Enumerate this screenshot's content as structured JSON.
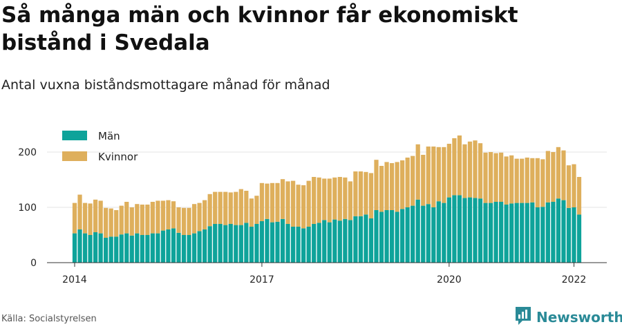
{
  "title": "Så många män och kvinnor får ekonomiskt bistånd i Svedala",
  "subtitle": "Antal vuxna biståndsmottagare månad för månad",
  "source": "Källa: Socialstyrelsen",
  "brand": {
    "name": "Newsworthy",
    "icon": "newsworthy-logo-icon",
    "color": "#2a8a97"
  },
  "chart_data": {
    "type": "bar",
    "stacked": true,
    "x_start": "2014-01",
    "x_end": "2022-01",
    "xticks": [
      "2014",
      "2017",
      "2020",
      "2022"
    ],
    "yticks": [
      "0",
      "100",
      "200"
    ],
    "ylim": [
      0,
      240
    ],
    "grid": true,
    "legend_position": "top-left",
    "series": [
      {
        "name": "Män",
        "color": "#0ea39a",
        "values": [
          53,
          60,
          53,
          50,
          55,
          53,
          45,
          47,
          47,
          51,
          53,
          49,
          53,
          50,
          50,
          53,
          53,
          58,
          60,
          62,
          54,
          50,
          50,
          53,
          57,
          60,
          66,
          70,
          70,
          68,
          70,
          68,
          68,
          72,
          65,
          70,
          75,
          79,
          73,
          74,
          79,
          70,
          65,
          65,
          62,
          65,
          70,
          72,
          77,
          73,
          78,
          76,
          79,
          77,
          84,
          84,
          87,
          80,
          95,
          92,
          95,
          95,
          92,
          97,
          100,
          103,
          114,
          103,
          106,
          100,
          111,
          108,
          118,
          122,
          122,
          117,
          118,
          117,
          116,
          108,
          108,
          110,
          110,
          105,
          107,
          108,
          108,
          108,
          109,
          100,
          101,
          109,
          110,
          116,
          113,
          99,
          100,
          87
        ]
      },
      {
        "name": "Kvinnor",
        "color": "#deaf5c",
        "values": [
          55,
          63,
          55,
          57,
          59,
          59,
          54,
          51,
          48,
          52,
          57,
          51,
          53,
          55,
          55,
          57,
          59,
          54,
          53,
          49,
          46,
          49,
          49,
          53,
          51,
          53,
          58,
          58,
          58,
          60,
          57,
          60,
          65,
          58,
          51,
          51,
          69,
          64,
          71,
          70,
          72,
          77,
          83,
          76,
          78,
          83,
          85,
          82,
          75,
          79,
          76,
          79,
          75,
          70,
          81,
          81,
          77,
          82,
          91,
          83,
          87,
          85,
          90,
          88,
          90,
          90,
          100,
          92,
          104,
          110,
          98,
          101,
          97,
          103,
          108,
          97,
          101,
          104,
          100,
          91,
          92,
          88,
          89,
          87,
          87,
          80,
          80,
          82,
          80,
          89,
          86,
          93,
          90,
          93,
          90,
          77,
          78,
          68
        ]
      }
    ]
  }
}
